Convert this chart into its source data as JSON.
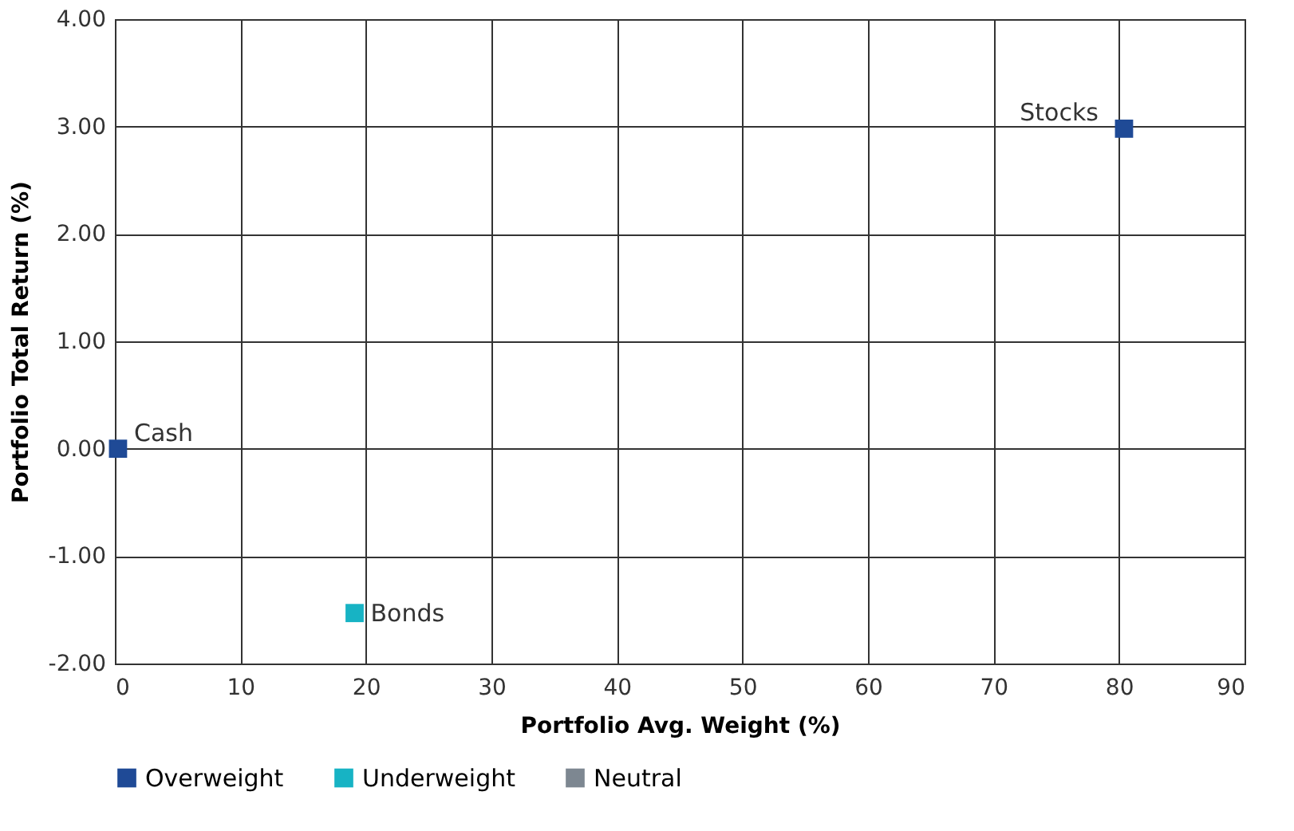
{
  "chart_data": {
    "type": "scatter",
    "xlabel": "Portfolio Avg. Weight (%)",
    "ylabel": "Portfolio Total Return (%)",
    "series": [
      {
        "name": "Overweight",
        "color": "#1f4a96",
        "x": [
          0.25,
          80.4
        ],
        "values": [
          0.0,
          2.98
        ]
      },
      {
        "name": "Underweight",
        "color": "#17b3c4",
        "x": [
          19.1
        ],
        "values": [
          -1.53
        ]
      },
      {
        "name": "Neutral",
        "color": "#7d8791"
      }
    ],
    "annotations": [
      {
        "text": "Cash",
        "x": 0.25,
        "y": 0.0
      },
      {
        "text": "Stocks",
        "x": 80.4,
        "y": 2.98
      },
      {
        "text": "Bonds",
        "x": 19.1,
        "y": -1.53
      }
    ],
    "xlim": [
      0,
      90
    ],
    "xticks": [
      0,
      10,
      20,
      30,
      40,
      50,
      60,
      70,
      80,
      90
    ],
    "ylim": [
      -2,
      4
    ],
    "yticks": [
      {
        "value": -2,
        "label": "-2.00"
      },
      {
        "value": -1,
        "label": "-1.00"
      },
      {
        "value": 0,
        "label": "0.00"
      },
      {
        "value": 1,
        "label": "1.00"
      },
      {
        "value": 2,
        "label": "2.00"
      },
      {
        "value": 3,
        "label": "3.00"
      },
      {
        "value": 4,
        "label": "4.00"
      }
    ],
    "grid": true,
    "legend": "bottom",
    "marker": "square"
  }
}
